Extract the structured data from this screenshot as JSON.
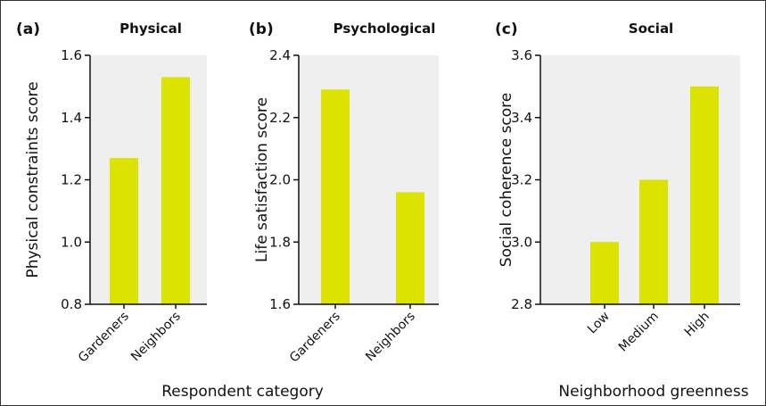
{
  "colors": {
    "bar": "#dce300",
    "panel_background": "#efefef",
    "axis": "#111111"
  },
  "chart_data": [
    {
      "panel_label": "(a)",
      "title": "Physical",
      "type": "bar",
      "categories": [
        "Gardeners",
        "Neighbors"
      ],
      "values": [
        1.27,
        1.53
      ],
      "ylabel": "Physical constraints score",
      "ylim": [
        0.8,
        1.6
      ],
      "yticks": [
        "0.8",
        "1.0",
        "1.2",
        "1.4",
        "1.6"
      ],
      "grid": false
    },
    {
      "panel_label": "(b)",
      "title": "Psychological",
      "type": "bar",
      "categories": [
        "Gardeners",
        "Neighbors"
      ],
      "values": [
        2.29,
        1.96
      ],
      "ylabel": "Life satisfaction score",
      "ylim": [
        1.6,
        2.4
      ],
      "yticks": [
        "1.6",
        "1.8",
        "2.0",
        "2.2",
        "2.4"
      ],
      "grid": false
    },
    {
      "panel_label": "(c)",
      "title": "Social",
      "type": "bar",
      "categories": [
        "Low",
        "Medium",
        "High"
      ],
      "values": [
        3.0,
        3.2,
        3.5
      ],
      "ylabel": "Social coherence score",
      "ylim": [
        2.8,
        3.6
      ],
      "yticks": [
        "2.8",
        "3.0",
        "3.2",
        "3.4",
        "3.6"
      ],
      "grid": false
    }
  ],
  "shared_xlabels": {
    "left": "Respondent category",
    "right": "Neighborhood greenness"
  }
}
